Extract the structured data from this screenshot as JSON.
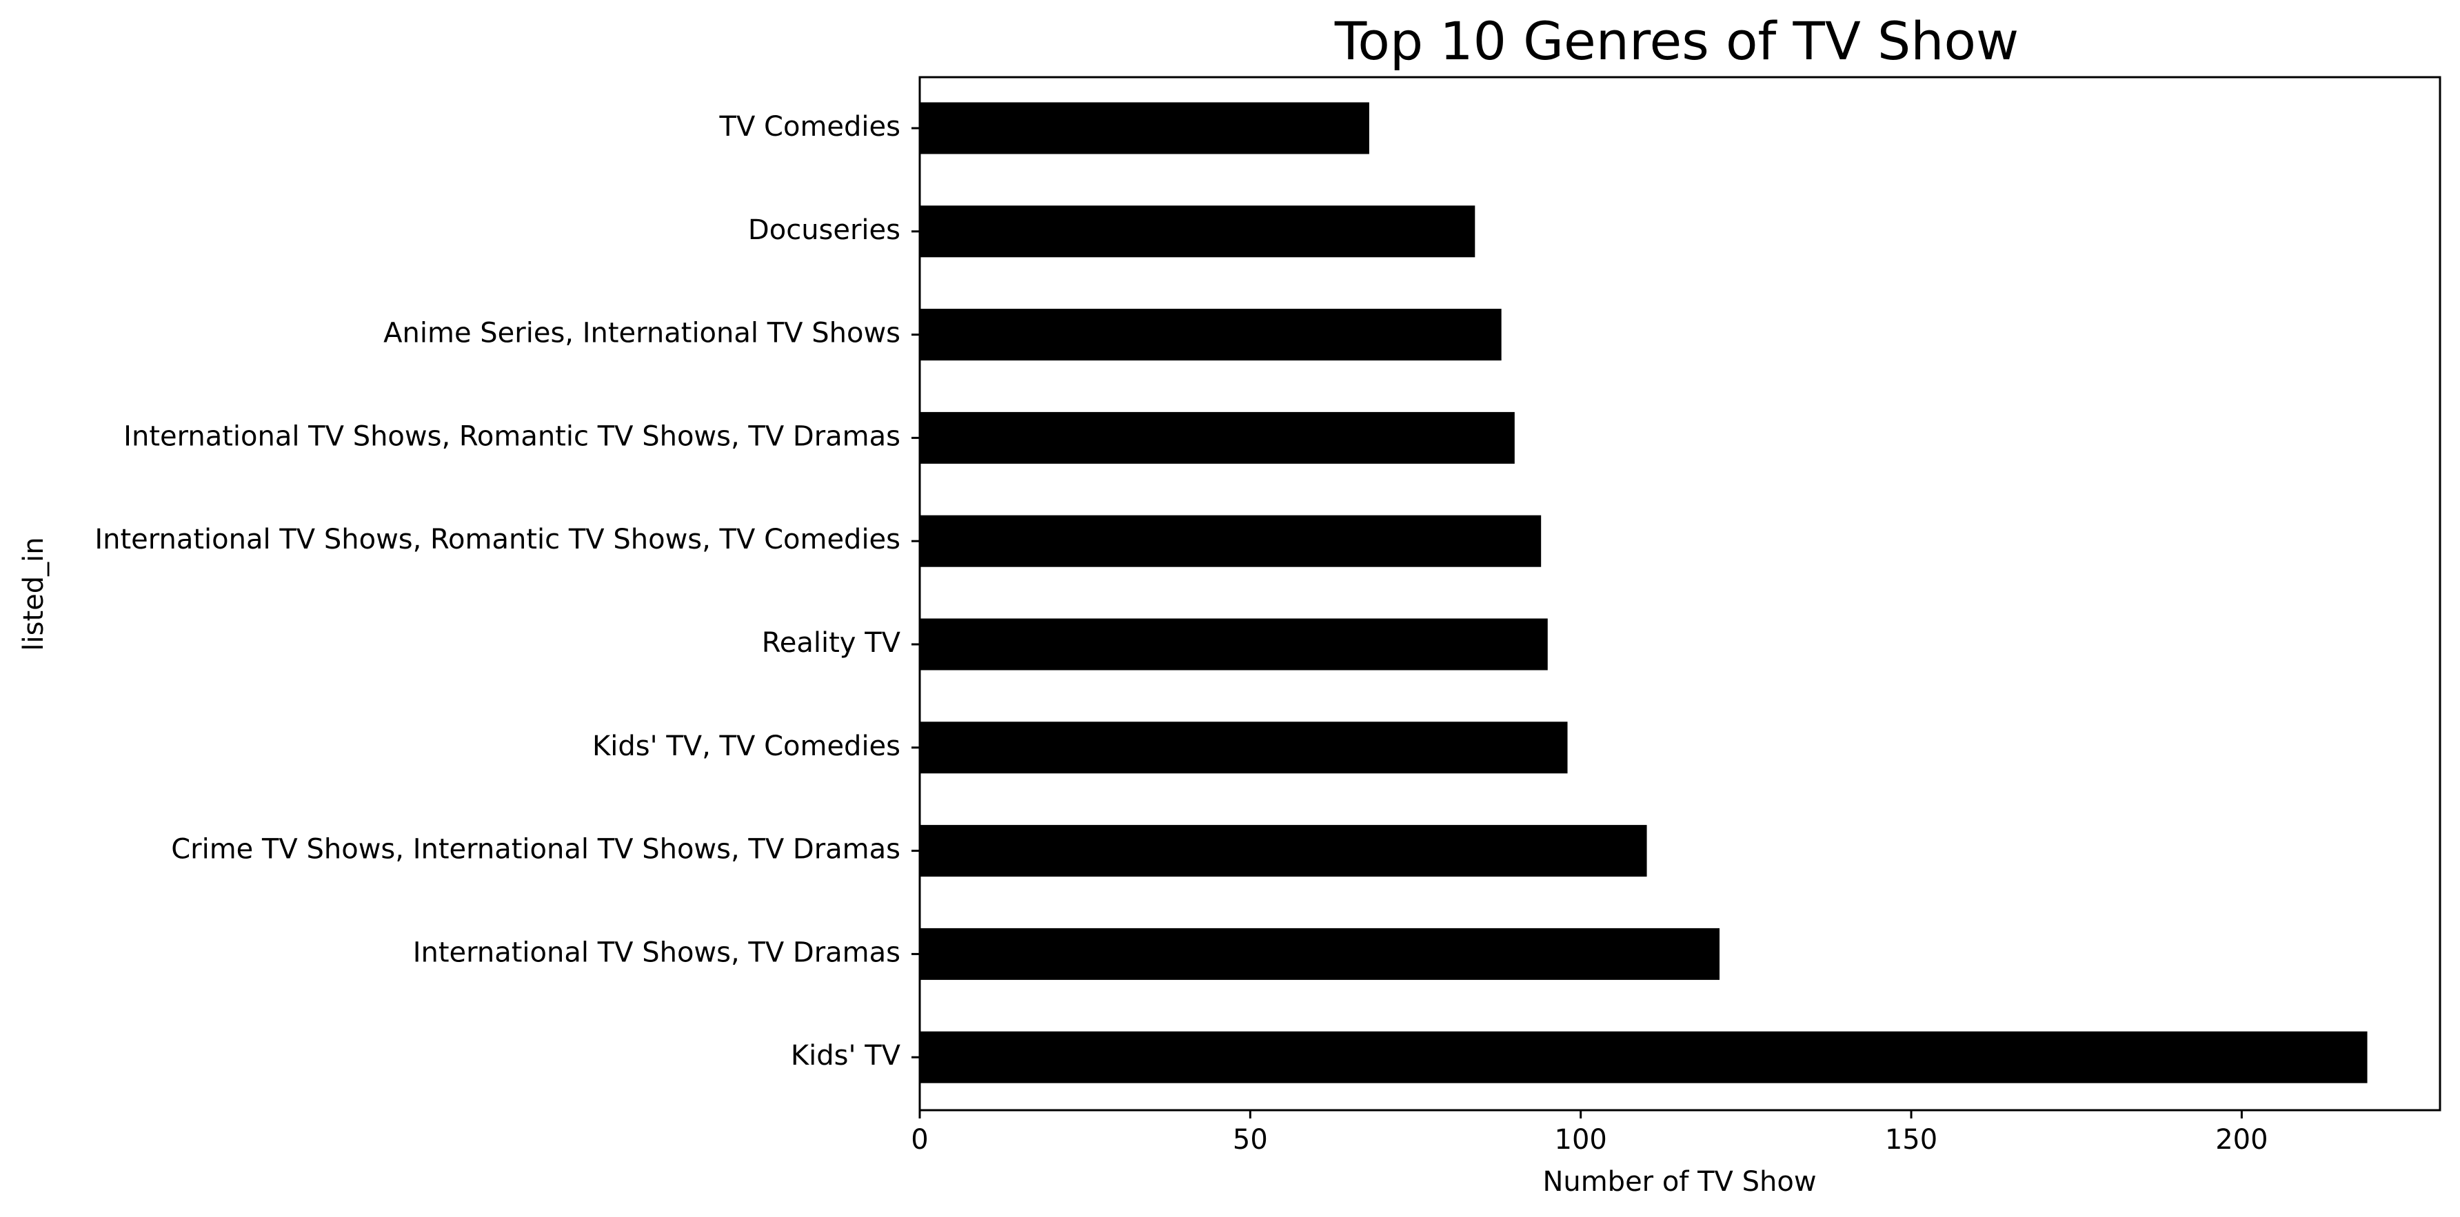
{
  "chart_data": {
    "type": "bar",
    "orientation": "horizontal",
    "title": "Top 10 Genres of TV Show",
    "xlabel": "Number of TV Show",
    "ylabel": "listed_in",
    "xlim": [
      0,
      230
    ],
    "xticks": [
      0,
      50,
      100,
      150,
      200
    ],
    "grid": false,
    "categories": [
      "TV Comedies",
      "Docuseries",
      "Anime Series, International TV Shows",
      "International TV Shows, Romantic TV Shows, TV Dramas",
      "International TV Shows, Romantic TV Shows, TV Comedies",
      "Reality TV",
      "Kids' TV, TV Comedies",
      "Crime TV Shows, International TV Shows, TV Dramas",
      "International TV Shows, TV Dramas",
      "Kids' TV"
    ],
    "values": [
      68,
      84,
      88,
      90,
      94,
      95,
      98,
      110,
      121,
      219
    ],
    "colors": {
      "bar": "#000000"
    }
  }
}
